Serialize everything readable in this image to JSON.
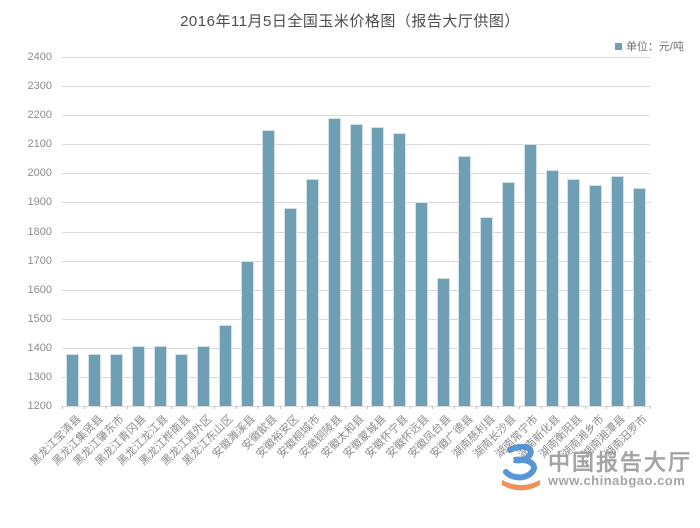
{
  "title": "2016年11月5日全国玉米价格图（报告大厅供图）",
  "legend": {
    "label": "单位：元/吨",
    "swatch_color": "#6f9fb4"
  },
  "watermark": {
    "site_name": "中国报告大厅",
    "site_url": "www.chinabgao.com"
  },
  "colors": {
    "bar": "#6f9fb4",
    "grid": "#d9d9d9",
    "axis_text": "#8c8c8c",
    "title_text": "#4d4d4d",
    "watermark_text": "#9d9d9d",
    "logo_blue": "#4a8fd3",
    "logo_orange": "#f0874c"
  },
  "chart_data": {
    "type": "bar",
    "title": "2016年11月5日全国玉米价格图（报告大厅供图）",
    "xlabel": "",
    "ylabel": "",
    "unit": "元/吨",
    "ylim": [
      1200,
      2400
    ],
    "ytick_step": 100,
    "grid": true,
    "legend_position": "top-right",
    "categories": [
      "黑龙江宝清县",
      "黑龙江集贤县",
      "黑龙江肇东市",
      "黑龙江青冈县",
      "黑龙江龙江县",
      "黑龙江桦南县",
      "黑龙江道外区",
      "黑龙江东山区",
      "安徽濉溪县",
      "安徽歙县",
      "安徽裕安区",
      "安徽桐城市",
      "安徽铜陵县",
      "安徽太和县",
      "安徽蒙城县",
      "安徽怀宁县",
      "安徽怀远县",
      "安徽凤台县",
      "安徽广德县",
      "湖南慈利县",
      "湖南长沙县",
      "湖南常宁市",
      "湖南新化县",
      "湖南衡阳县",
      "湖南湘乡市",
      "湖南湘潭县",
      "湖南汨罗市"
    ],
    "values": [
      1380,
      1380,
      1380,
      1405,
      1405,
      1380,
      1405,
      1480,
      1700,
      2150,
      1880,
      1980,
      2190,
      2170,
      2160,
      2140,
      1900,
      1640,
      2060,
      1850,
      1970,
      2100,
      2010,
      1980,
      1960,
      1990,
      1950
    ]
  }
}
